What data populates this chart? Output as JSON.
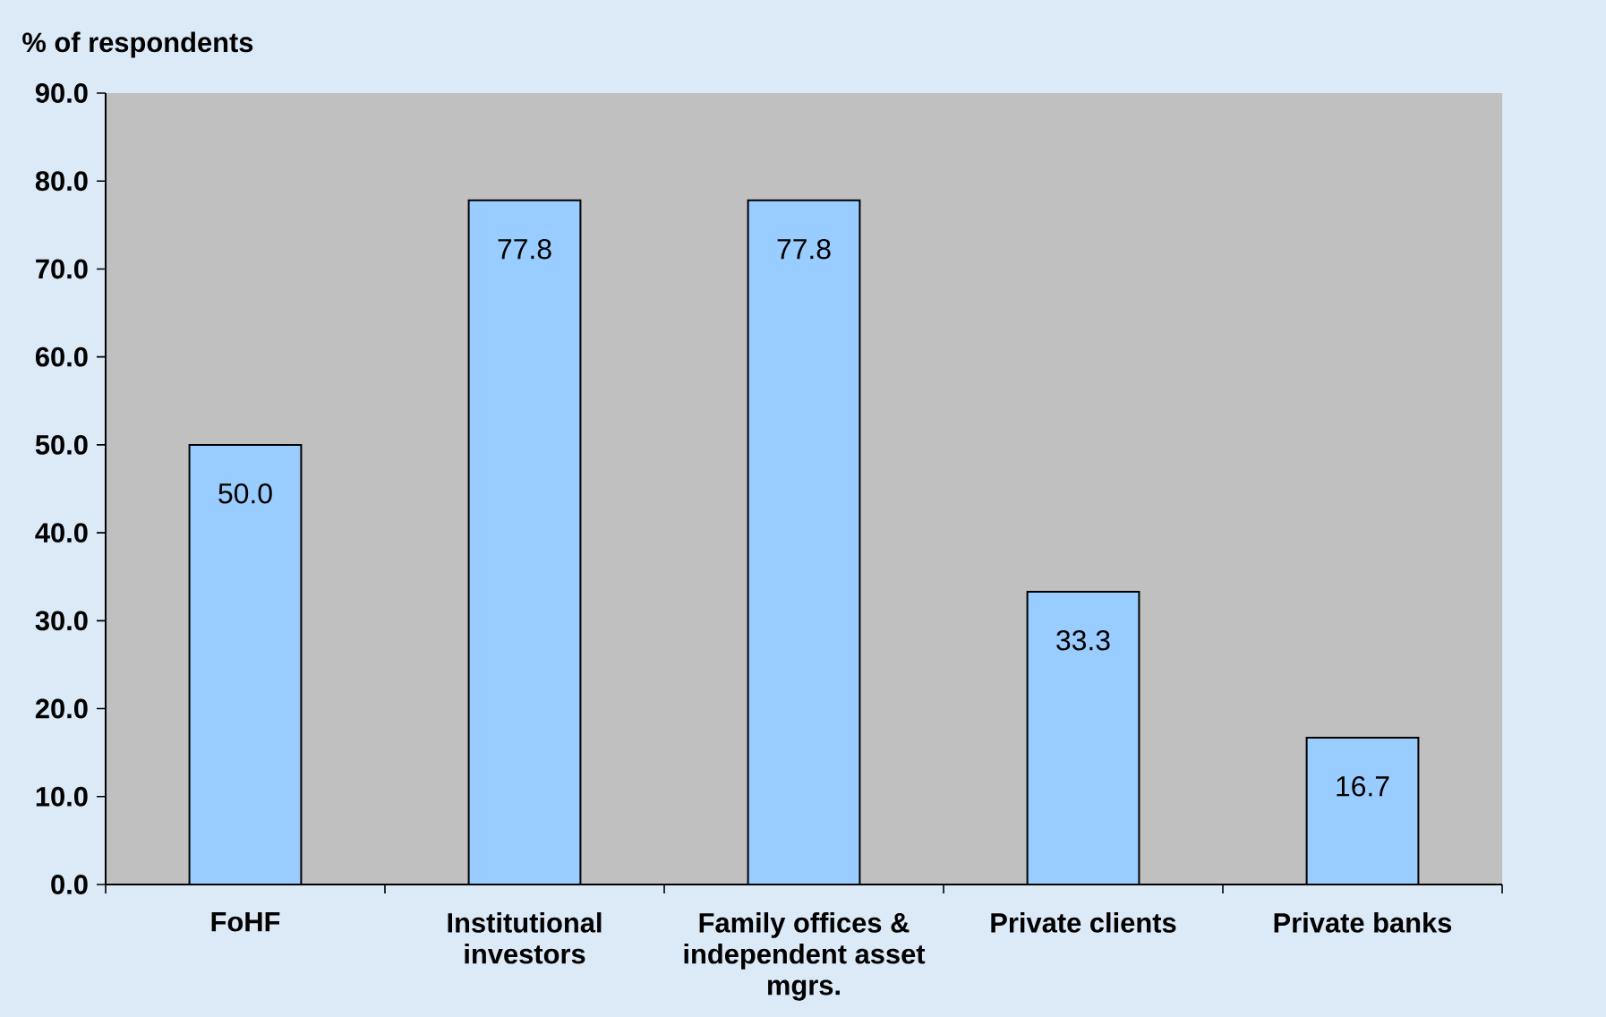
{
  "chart_data": {
    "type": "bar",
    "ylabel": "% of respondents",
    "categories": [
      "FoHF",
      "Institutional investors",
      "Family offices & independent asset mgrs.",
      "Private clients",
      "Private banks"
    ],
    "values": [
      50.0,
      77.8,
      77.8,
      33.3,
      16.7
    ],
    "value_labels": [
      "50.0",
      "77.8",
      "77.8",
      "33.3",
      "16.7"
    ],
    "color": "#99ccff",
    "ylim": [
      0,
      90
    ],
    "yticks": [
      {
        "value": 0,
        "label": "0.0"
      },
      {
        "value": 10,
        "label": "10.0"
      },
      {
        "value": 20,
        "label": "20.0"
      },
      {
        "value": 30,
        "label": "30.0"
      },
      {
        "value": 40,
        "label": "40.0"
      },
      {
        "value": 50,
        "label": "50.0"
      },
      {
        "value": 60,
        "label": "60.0"
      },
      {
        "value": 70,
        "label": "70.0"
      },
      {
        "value": 80,
        "label": "80.0"
      },
      {
        "value": 90,
        "label": "90.0"
      }
    ]
  }
}
